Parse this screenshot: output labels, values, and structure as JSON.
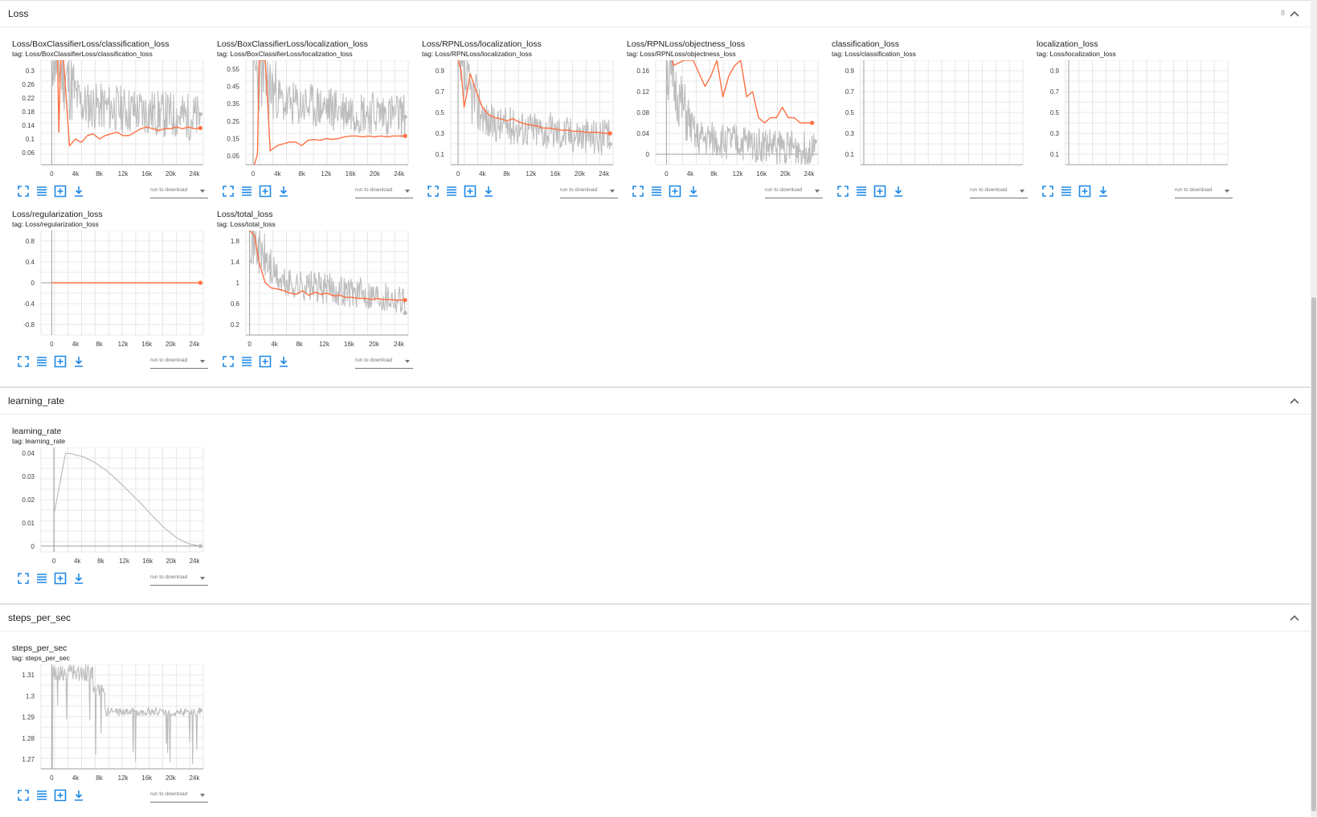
{
  "sections": {
    "loss": {
      "title": "Loss",
      "count": "8"
    },
    "learning_rate": {
      "title": "learning_rate"
    },
    "steps_per_sec": {
      "title": "steps_per_sec"
    }
  },
  "run_download_label": "run to download",
  "colors": {
    "smoothed": "#ff7043",
    "raw": "#bdbdbd",
    "accent": "#1e88e5",
    "grid": "#e0e0e0"
  },
  "icons": [
    "fullscreen-icon",
    "data-table-icon",
    "fit-domain-icon",
    "download-icon"
  ],
  "chart_data": [
    {
      "id": "c0",
      "type": "line",
      "title": "Loss/BoxClassifierLoss/classification_loss",
      "tag": "tag: Loss/BoxClassifierLoss/classification_loss",
      "yticks": [
        "0.06",
        "0.1",
        "0.14",
        "0.18",
        "0.22",
        "0.26",
        "0.3"
      ],
      "ytick_values": [
        0.06,
        0.1,
        0.14,
        0.18,
        0.22,
        0.26,
        0.3
      ],
      "ylim": [
        0.025,
        0.33
      ],
      "xticks": [
        "0",
        "4k",
        "8k",
        "12k",
        "16k",
        "20k",
        "24k"
      ],
      "xtick_values": [
        0,
        4000,
        8000,
        12000,
        16000,
        20000,
        24000
      ],
      "xlim": [
        -1800,
        25500
      ],
      "raw": {
        "start": 0.35,
        "mid": 0.2,
        "end": 0.16,
        "noise": 0.07,
        "seed": 11
      },
      "smoothed": [
        [
          1000,
          0.33
        ],
        [
          1200,
          0.12
        ],
        [
          1500,
          0.33
        ],
        [
          2000,
          0.33
        ],
        [
          3000,
          0.08
        ],
        [
          4000,
          0.1
        ],
        [
          5000,
          0.09
        ],
        [
          6000,
          0.11
        ],
        [
          7000,
          0.115
        ],
        [
          8000,
          0.1
        ],
        [
          9000,
          0.11
        ],
        [
          10000,
          0.115
        ],
        [
          11000,
          0.12
        ],
        [
          12000,
          0.11
        ],
        [
          13000,
          0.11
        ],
        [
          14000,
          0.12
        ],
        [
          15000,
          0.13
        ],
        [
          16000,
          0.135
        ],
        [
          17000,
          0.13
        ],
        [
          18000,
          0.125
        ],
        [
          19000,
          0.13
        ],
        [
          20000,
          0.13
        ],
        [
          21000,
          0.135
        ],
        [
          22000,
          0.13
        ],
        [
          23000,
          0.135
        ],
        [
          24000,
          0.13
        ],
        [
          25000,
          0.132
        ]
      ]
    },
    {
      "id": "c1",
      "type": "line",
      "title": "Loss/BoxClassifierLoss/localization_loss",
      "tag": "tag: Loss/BoxClassifierLoss/localization_loss",
      "yticks": [
        "0.05",
        "0.15",
        "0.25",
        "0.35",
        "0.45",
        "0.55"
      ],
      "ytick_values": [
        0.05,
        0.15,
        0.25,
        0.35,
        0.45,
        0.55
      ],
      "ylim": [
        0.0,
        0.6
      ],
      "xticks": [
        "0",
        "4k",
        "8k",
        "12k",
        "16k",
        "20k",
        "24k"
      ],
      "xtick_values": [
        0,
        4000,
        8000,
        12000,
        16000,
        20000,
        24000
      ],
      "xlim": [
        -1200,
        25500
      ],
      "raw": {
        "start": 0.55,
        "mid": 0.35,
        "end": 0.28,
        "noise": 0.13,
        "seed": 23
      },
      "smoothed": [
        [
          200,
          0.0
        ],
        [
          700,
          0.06
        ],
        [
          1000,
          0.6
        ],
        [
          1300,
          0.6
        ],
        [
          2000,
          0.6
        ],
        [
          2800,
          0.08
        ],
        [
          4000,
          0.11
        ],
        [
          5000,
          0.12
        ],
        [
          6000,
          0.13
        ],
        [
          7000,
          0.13
        ],
        [
          8000,
          0.11
        ],
        [
          9000,
          0.14
        ],
        [
          10000,
          0.145
        ],
        [
          11000,
          0.14
        ],
        [
          12000,
          0.15
        ],
        [
          13000,
          0.145
        ],
        [
          14000,
          0.15
        ],
        [
          15000,
          0.16
        ],
        [
          16000,
          0.165
        ],
        [
          17000,
          0.165
        ],
        [
          18000,
          0.16
        ],
        [
          19000,
          0.165
        ],
        [
          20000,
          0.16
        ],
        [
          21000,
          0.165
        ],
        [
          22000,
          0.16
        ],
        [
          23000,
          0.165
        ],
        [
          24000,
          0.165
        ],
        [
          25000,
          0.165
        ]
      ]
    },
    {
      "id": "c2",
      "type": "line",
      "title": "Loss/RPNLoss/localization_loss",
      "tag": "tag: Loss/RPNLoss/localization_loss",
      "yticks": [
        "0.1",
        "0.3",
        "0.5",
        "0.7",
        "0.9"
      ],
      "ytick_values": [
        0.1,
        0.3,
        0.5,
        0.7,
        0.9
      ],
      "ylim": [
        0.0,
        1.0
      ],
      "xticks": [
        "0",
        "4k",
        "8k",
        "12k",
        "16k",
        "20k",
        "24k"
      ],
      "xtick_values": [
        0,
        4000,
        8000,
        12000,
        16000,
        20000,
        24000
      ],
      "xlim": [
        -1200,
        25500
      ],
      "raw": {
        "start": 0.9,
        "mid": 0.4,
        "end": 0.25,
        "noise": 0.18,
        "seed": 37
      },
      "smoothed": [
        [
          0,
          1.0
        ],
        [
          500,
          0.9
        ],
        [
          1000,
          0.55
        ],
        [
          1500,
          0.7
        ],
        [
          2000,
          0.87
        ],
        [
          3000,
          0.7
        ],
        [
          4000,
          0.55
        ],
        [
          5000,
          0.48
        ],
        [
          6000,
          0.45
        ],
        [
          7000,
          0.44
        ],
        [
          8000,
          0.42
        ],
        [
          9000,
          0.44
        ],
        [
          10000,
          0.41
        ],
        [
          11000,
          0.39
        ],
        [
          12000,
          0.38
        ],
        [
          13000,
          0.37
        ],
        [
          14000,
          0.35
        ],
        [
          15000,
          0.35
        ],
        [
          16000,
          0.34
        ],
        [
          17000,
          0.33
        ],
        [
          18000,
          0.33
        ],
        [
          19000,
          0.32
        ],
        [
          20000,
          0.32
        ],
        [
          21000,
          0.31
        ],
        [
          22000,
          0.31
        ],
        [
          23000,
          0.31
        ],
        [
          24000,
          0.3
        ],
        [
          25000,
          0.3
        ]
      ]
    },
    {
      "id": "c3",
      "type": "line",
      "title": "Loss/RPNLoss/objectness_loss",
      "tag": "tag: Loss/RPNLoss/objectness_loss",
      "yticks": [
        "0",
        "0.04",
        "0.08",
        "0.12",
        "0.16"
      ],
      "ytick_values": [
        0,
        0.04,
        0.08,
        0.12,
        0.16
      ],
      "ylim": [
        -0.02,
        0.18
      ],
      "xticks": [
        "0",
        "4k",
        "8k",
        "12k",
        "16k",
        "20k",
        "24k"
      ],
      "xtick_values": [
        0,
        4000,
        8000,
        12000,
        16000,
        20000,
        24000
      ],
      "xlim": [
        -1800,
        25500
      ],
      "raw": {
        "start": 0.16,
        "mid": 0.03,
        "end": 0.008,
        "noise": 0.035,
        "seed": 51
      },
      "smoothed": [
        [
          1000,
          0.18
        ],
        [
          1200,
          0.17
        ],
        [
          3000,
          0.18
        ],
        [
          4500,
          0.18
        ],
        [
          6500,
          0.13
        ],
        [
          7500,
          0.15
        ],
        [
          8500,
          0.18
        ],
        [
          9500,
          0.11
        ],
        [
          10500,
          0.15
        ],
        [
          11500,
          0.17
        ],
        [
          12500,
          0.18
        ],
        [
          13500,
          0.11
        ],
        [
          14500,
          0.12
        ],
        [
          15500,
          0.07
        ],
        [
          16500,
          0.06
        ],
        [
          17500,
          0.07
        ],
        [
          18500,
          0.07
        ],
        [
          19500,
          0.09
        ],
        [
          20500,
          0.07
        ],
        [
          21500,
          0.07
        ],
        [
          22500,
          0.06
        ],
        [
          23500,
          0.06
        ],
        [
          24500,
          0.06
        ]
      ]
    },
    {
      "id": "c4",
      "type": "line",
      "title": "classification_loss",
      "tag": "tag: Loss/classification_loss",
      "yticks": [
        "0.1",
        "0.3",
        "0.5",
        "0.7",
        "0.9"
      ],
      "ytick_values": [
        0.1,
        0.3,
        0.5,
        0.7,
        0.9
      ],
      "ylim": [
        0.0,
        1.0
      ],
      "xticks": [],
      "xtick_values": [],
      "xlim": [
        0,
        1
      ],
      "empty": true
    },
    {
      "id": "c5",
      "type": "line",
      "title": "localization_loss",
      "tag": "tag: Loss/localization_loss",
      "yticks": [
        "0.1",
        "0.3",
        "0.5",
        "0.7",
        "0.9"
      ],
      "ytick_values": [
        0.1,
        0.3,
        0.5,
        0.7,
        0.9
      ],
      "ylim": [
        0.0,
        1.0
      ],
      "xticks": [],
      "xtick_values": [],
      "xlim": [
        0,
        1
      ],
      "empty": true
    },
    {
      "id": "c6",
      "type": "line",
      "title": "Loss/regularization_loss",
      "tag": "tag: Loss/regularization_loss",
      "yticks": [
        "-0.8",
        "-0.4",
        "0",
        "0.4",
        "0.8"
      ],
      "ytick_values": [
        -0.8,
        -0.4,
        0,
        0.4,
        0.8
      ],
      "ylim": [
        -1.0,
        1.0
      ],
      "xticks": [
        "0",
        "4k",
        "8k",
        "12k",
        "16k",
        "20k",
        "24k"
      ],
      "xtick_values": [
        0,
        4000,
        8000,
        12000,
        16000,
        20000,
        24000
      ],
      "xlim": [
        -1800,
        25500
      ],
      "smoothed": [
        [
          0,
          0
        ],
        [
          25000,
          0
        ]
      ]
    },
    {
      "id": "c7",
      "type": "line",
      "title": "Loss/total_loss",
      "tag": "tag: Loss/total_loss",
      "yticks": [
        "0.2",
        "0.6",
        "1",
        "1.4",
        "1.8"
      ],
      "ytick_values": [
        0.2,
        0.6,
        1.0,
        1.4,
        1.8
      ],
      "ylim": [
        0.0,
        2.0
      ],
      "xticks": [
        "0",
        "4k",
        "8k",
        "12k",
        "16k",
        "20k",
        "24k"
      ],
      "xtick_values": [
        0,
        4000,
        8000,
        12000,
        16000,
        20000,
        24000
      ],
      "xlim": [
        -600,
        25500
      ],
      "raw": {
        "start": 1.9,
        "mid": 1.0,
        "end": 0.7,
        "noise": 0.3,
        "seed": 71
      },
      "smoothed": [
        [
          0,
          2.0
        ],
        [
          800,
          1.9
        ],
        [
          1500,
          1.4
        ],
        [
          2500,
          1.0
        ],
        [
          3500,
          0.9
        ],
        [
          4500,
          0.88
        ],
        [
          5500,
          0.85
        ],
        [
          6500,
          0.8
        ],
        [
          7500,
          0.78
        ],
        [
          8500,
          0.85
        ],
        [
          9500,
          0.76
        ],
        [
          10500,
          0.82
        ],
        [
          11500,
          0.78
        ],
        [
          12500,
          0.8
        ],
        [
          13500,
          0.75
        ],
        [
          14500,
          0.76
        ],
        [
          15500,
          0.72
        ],
        [
          16500,
          0.72
        ],
        [
          17500,
          0.7
        ],
        [
          18500,
          0.7
        ],
        [
          19500,
          0.68
        ],
        [
          20500,
          0.7
        ],
        [
          21500,
          0.68
        ],
        [
          22500,
          0.68
        ],
        [
          23500,
          0.67
        ],
        [
          24500,
          0.67
        ],
        [
          25000,
          0.67
        ]
      ]
    },
    {
      "id": "c8",
      "type": "line",
      "title": "learning_rate",
      "tag": "tag: learning_rate",
      "yticks": [
        "0",
        "0.01",
        "0.02",
        "0.03",
        "0.04"
      ],
      "ytick_values": [
        0,
        0.01,
        0.02,
        0.03,
        0.04
      ],
      "ylim": [
        -0.0025,
        0.0425
      ],
      "xticks": [
        "0",
        "4k",
        "8k",
        "12k",
        "16k",
        "20k",
        "24k"
      ],
      "xtick_values": [
        0,
        4000,
        8000,
        12000,
        16000,
        20000,
        24000
      ],
      "xlim": [
        -2200,
        25500
      ],
      "rawline": [
        [
          0,
          0.0133
        ],
        [
          2000,
          0.04
        ],
        [
          3000,
          0.0398
        ],
        [
          5000,
          0.0385
        ],
        [
          7000,
          0.036
        ],
        [
          9000,
          0.0325
        ],
        [
          11000,
          0.028
        ],
        [
          13000,
          0.023
        ],
        [
          15000,
          0.018
        ],
        [
          17000,
          0.0125
        ],
        [
          19000,
          0.0075
        ],
        [
          21000,
          0.0035
        ],
        [
          23000,
          0.001
        ],
        [
          25000,
          0.0
        ]
      ]
    },
    {
      "id": "c9",
      "type": "line",
      "title": "steps_per_sec",
      "tag": "tag: steps_per_sec",
      "yticks": [
        "1.27",
        "1.28",
        "1.29",
        "1.3",
        "1.31"
      ],
      "ytick_values": [
        1.27,
        1.28,
        1.29,
        1.3,
        1.31
      ],
      "ylim": [
        1.2655,
        1.315
      ],
      "xticks": [
        "0",
        "4k",
        "8k",
        "12k",
        "16k",
        "20k",
        "24k"
      ],
      "xtick_values": [
        0,
        4000,
        8000,
        12000,
        16000,
        20000,
        24000
      ],
      "xlim": [
        -1800,
        25500
      ],
      "raw": {
        "pattern": "steps",
        "seed": 91
      }
    }
  ]
}
